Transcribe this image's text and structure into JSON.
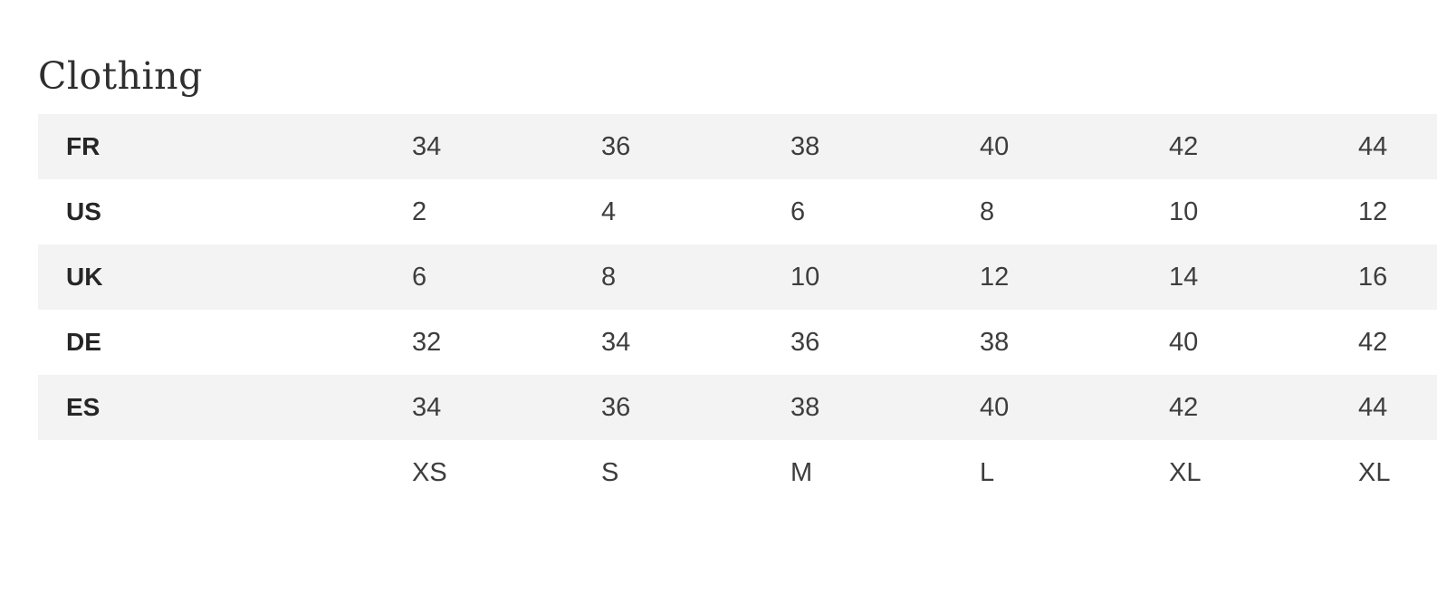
{
  "page": {
    "title": "Clothing"
  },
  "table": {
    "rows": [
      {
        "label": "FR",
        "values": [
          "34",
          "36",
          "38",
          "40",
          "42",
          "44"
        ]
      },
      {
        "label": "US",
        "values": [
          "2",
          "4",
          "6",
          "8",
          "10",
          "12"
        ]
      },
      {
        "label": "UK",
        "values": [
          "6",
          "8",
          "10",
          "12",
          "14",
          "16"
        ]
      },
      {
        "label": "DE",
        "values": [
          "32",
          "34",
          "36",
          "38",
          "40",
          "42"
        ]
      },
      {
        "label": "ES",
        "values": [
          "34",
          "36",
          "38",
          "40",
          "42",
          "44"
        ]
      },
      {
        "label": "",
        "values": [
          "XS",
          "S",
          "M",
          "L",
          "XL",
          "XL"
        ]
      }
    ]
  },
  "colors": {
    "stripe": "#f3f3f3",
    "value_text": "#3d3d3d",
    "label_text": "#262626",
    "title_text": "#2f2f2f",
    "background": "#ffffff"
  }
}
